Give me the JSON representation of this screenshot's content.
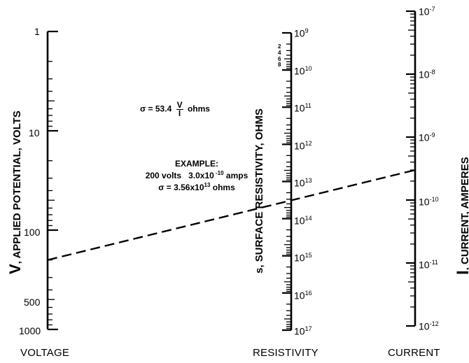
{
  "axes": {
    "voltage": {
      "title_symbol": "V",
      "title_rest": ", APPLIED POTENTIAL, VOLTS",
      "bottom_label": "VOLTAGE",
      "labels": [
        {
          "text": "1",
          "value": 1
        },
        {
          "text": "10",
          "value": 10
        },
        {
          "text": "100",
          "value": 100
        },
        {
          "text": "500",
          "value": 500
        },
        {
          "text": "1000",
          "value": 1000
        }
      ]
    },
    "resistivity": {
      "title": "s, SURFACE RESISTIVITY, OHMS",
      "bottom_label": "RESISTIVITY",
      "decade_labels": [
        {
          "base": "10",
          "exp": "9"
        },
        {
          "base": "10",
          "exp": "10"
        },
        {
          "base": "10",
          "exp": "11"
        },
        {
          "base": "10",
          "exp": "12"
        },
        {
          "base": "10",
          "exp": "13"
        },
        {
          "base": "10",
          "exp": "14"
        },
        {
          "base": "10",
          "exp": "15"
        },
        {
          "base": "10",
          "exp": "16"
        },
        {
          "base": "10",
          "exp": "17"
        }
      ],
      "minor_labels": [
        "2",
        "4",
        "6",
        "8"
      ]
    },
    "current": {
      "title_symbol": "I",
      "title_rest": ", CURRENT, AMPERES",
      "bottom_label": "CURRENT",
      "decade_labels": [
        {
          "base": "10",
          "exp": "-7"
        },
        {
          "base": "10",
          "exp": "-8"
        },
        {
          "base": "10",
          "exp": "-9"
        },
        {
          "base": "10",
          "exp": "-10"
        },
        {
          "base": "10",
          "exp": "-11"
        },
        {
          "base": "10",
          "exp": "-12"
        }
      ]
    }
  },
  "formula": {
    "lhs": "σ = 53.4",
    "numerator": "V",
    "denominator": "I",
    "unit": "ohms"
  },
  "example": {
    "heading": "EXAMPLE:",
    "line1_volts": "200 volts",
    "line1_amps": "3.0x10",
    "line1_amps_exp": " -10",
    "line1_amps_unit": " amps",
    "line2_prefix": "σ = 3.56x10",
    "line2_exp": "13",
    "line2_suffix": " ohms"
  },
  "example_line": {
    "voltage_volts": 200,
    "resistivity_ohms": 35600000000000.0,
    "current_amps": 3e-10
  }
}
